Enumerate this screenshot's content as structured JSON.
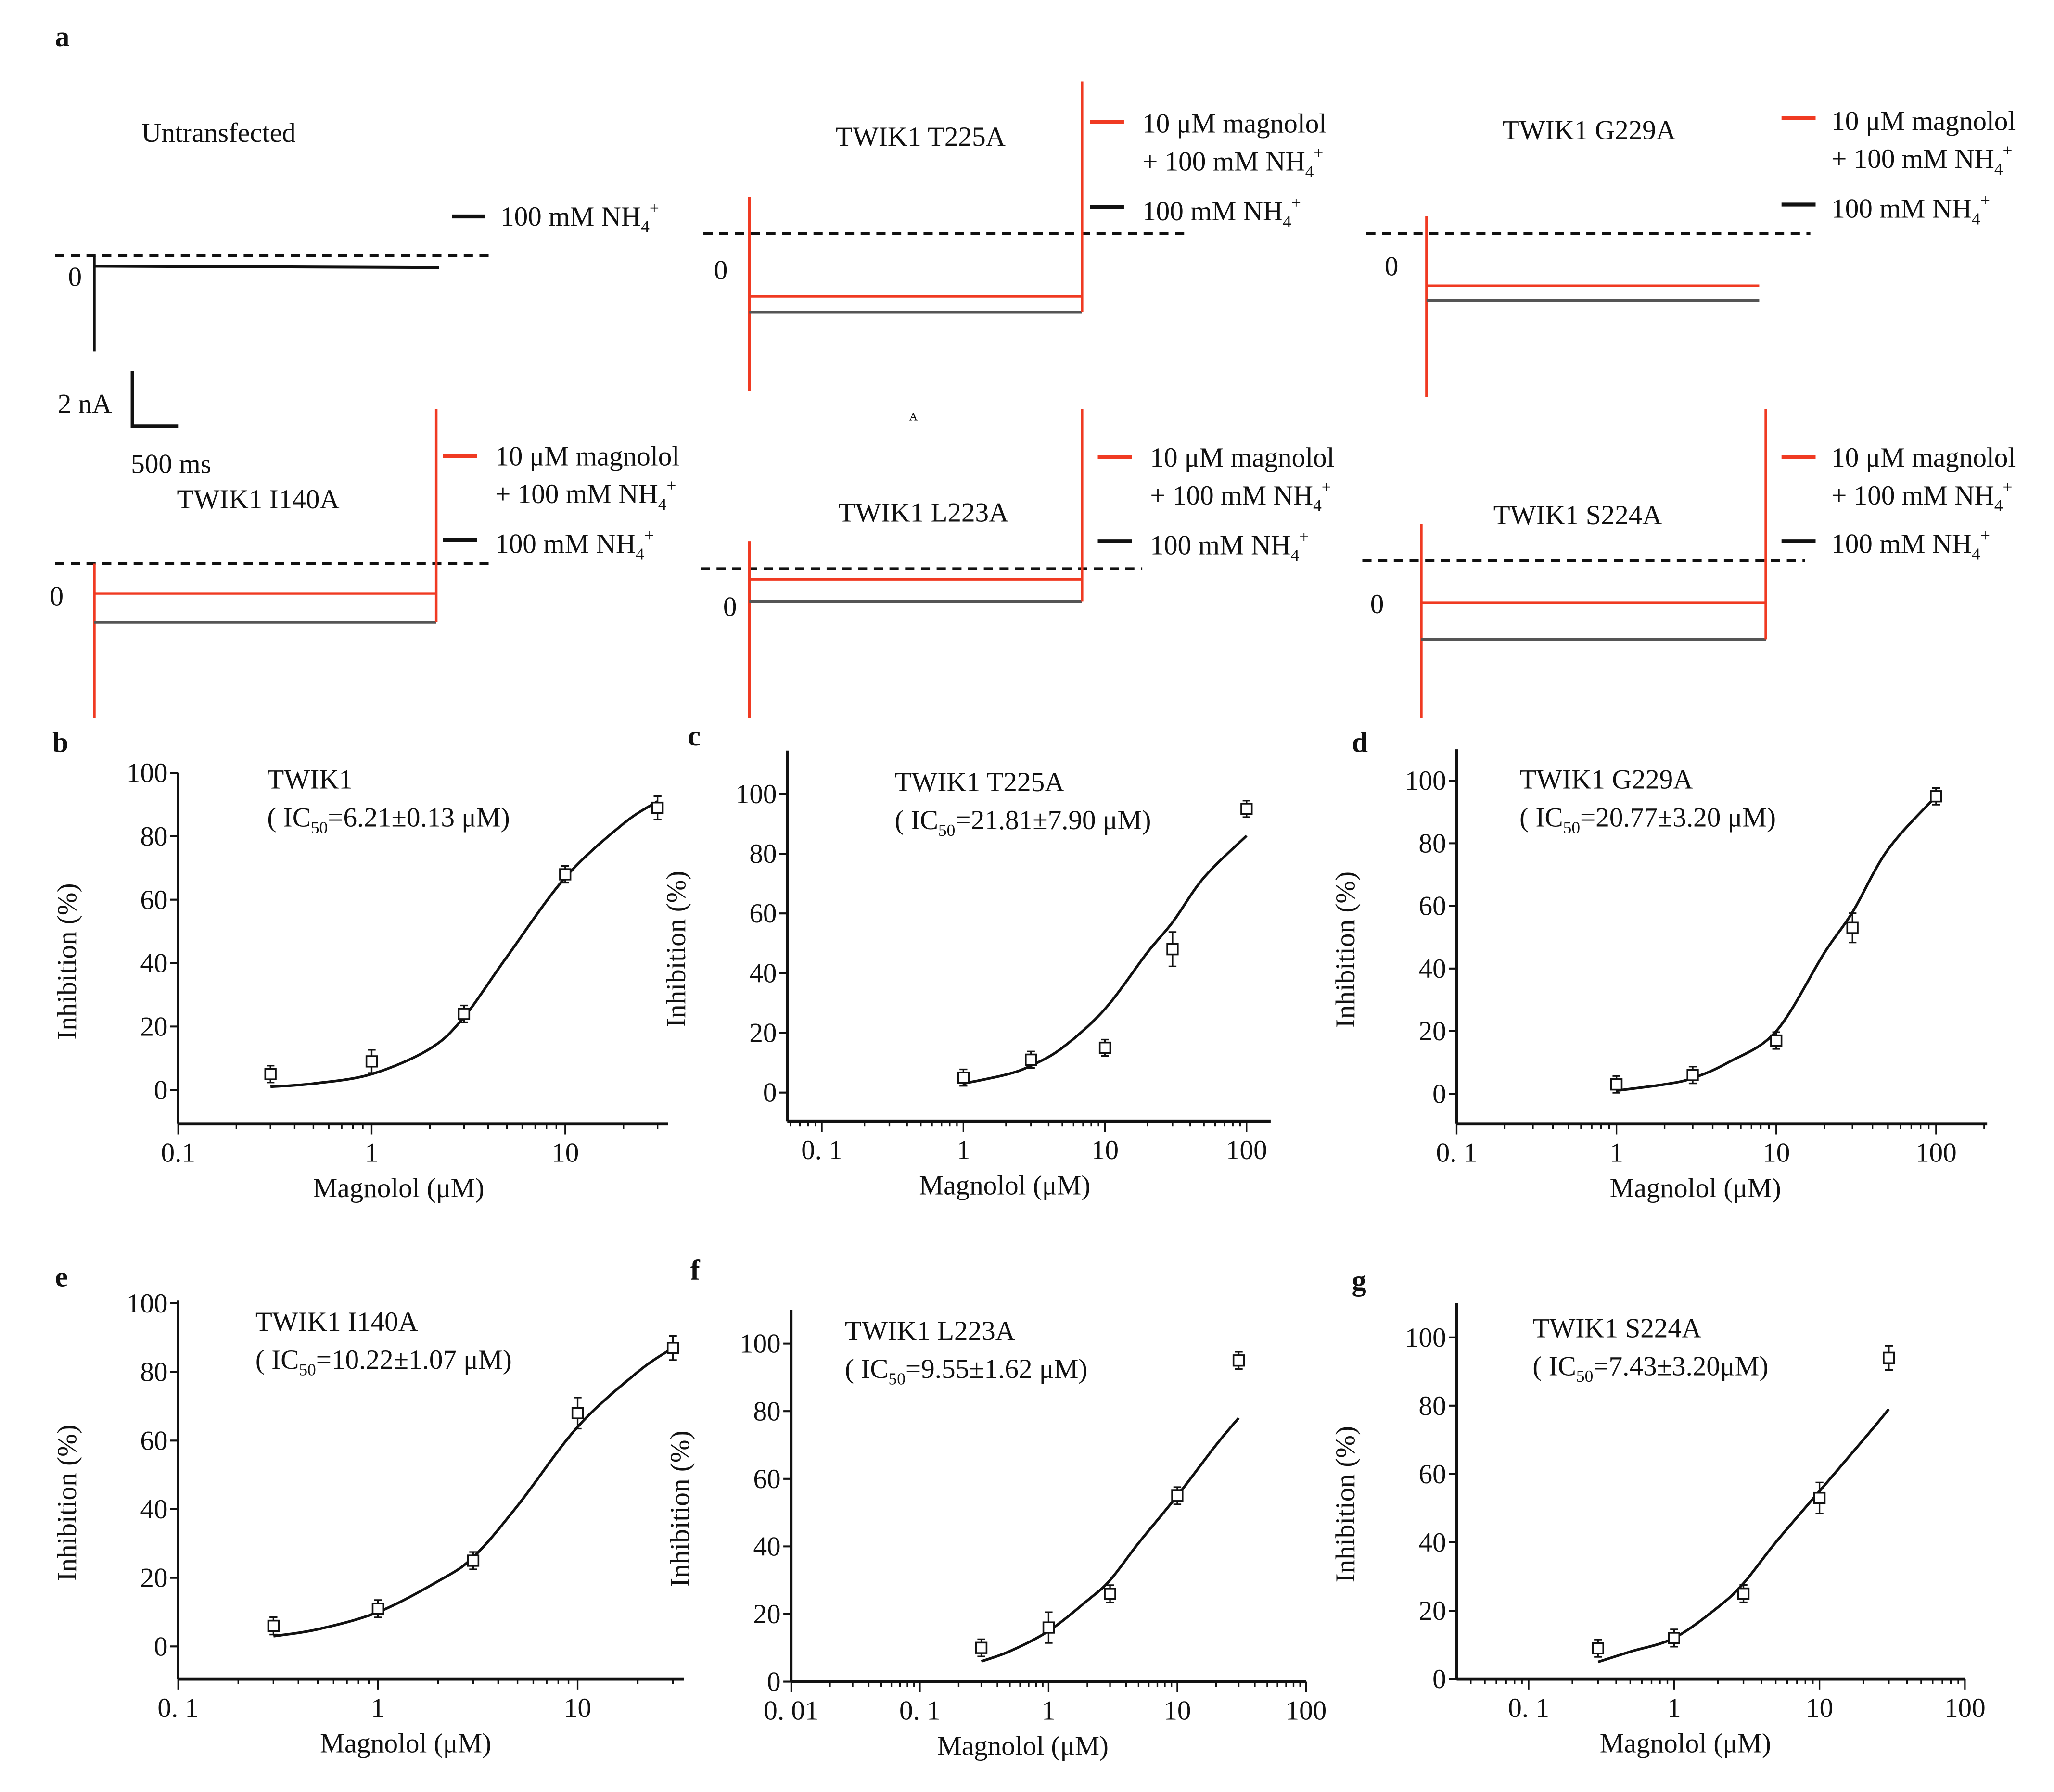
{
  "panel_letters": {
    "a": "a",
    "b": "b",
    "c": "c",
    "d": "d",
    "e": "e",
    "f": "f",
    "g": "g"
  },
  "traces": {
    "zero_label": "0",
    "stray_mark": "A",
    "scale_bar": {
      "current": "2 nA",
      "time": "500 ms"
    },
    "legend": {
      "magnolol_line1": "10 μM magnolol",
      "magnolol_line2_prefix": "+ 100 mM NH",
      "nh4_prefix": "100 mM NH",
      "sub": "4",
      "sup": "+"
    },
    "colors": {
      "magnolol": "#f03a22",
      "control": "#111111",
      "control_trace": "#555555"
    },
    "panels": [
      {
        "title": "Untransfected"
      },
      {
        "title": "TWIK1 T225A"
      },
      {
        "title": "TWIK1 G229A"
      },
      {
        "title": "TWIK1 I140A"
      },
      {
        "title": "TWIK1 L223A"
      },
      {
        "title": "TWIK1 S224A"
      }
    ]
  },
  "chart_data": [
    {
      "id": "b",
      "type": "scatter",
      "title": "TWIK1",
      "ic50_prefix": "( IC",
      "ic50_sub": "50",
      "ic50_value": "=6.21±0.13 μM)",
      "xlabel": "Magnolol (μM)",
      "ylabel": "Inhibition (%)",
      "xscale": "log",
      "xlim": [
        0.1,
        34
      ],
      "ylim": [
        -10.7,
        100
      ],
      "xticks": [
        {
          "v": 0.1,
          "t": "0.1"
        },
        {
          "v": 1,
          "t": "1"
        },
        {
          "v": 10,
          "t": "10"
        }
      ],
      "yticks": [
        0,
        20,
        40,
        60,
        80,
        100
      ],
      "x": [
        0.3,
        1,
        3,
        10,
        30
      ],
      "y": [
        5,
        9,
        24,
        68,
        89
      ],
      "err": [
        1,
        2,
        1,
        1,
        2
      ],
      "fit": {
        "x": [
          0.3,
          0.5,
          1,
          2,
          3,
          5,
          10,
          20,
          30
        ],
        "y": [
          1,
          2,
          5,
          13,
          23,
          42,
          67,
          84,
          91
        ]
      }
    },
    {
      "id": "c",
      "type": "scatter",
      "title": "TWIK1 T225A",
      "ic50_prefix": "( IC",
      "ic50_sub": "50",
      "ic50_value": "=21.81±7.90 μM)",
      "xlabel": "Magnolol (μM)",
      "ylabel": "Inhibition (%)",
      "xscale": "log",
      "xlim": [
        0.057,
        148
      ],
      "ylim": [
        -9.6,
        114.5
      ],
      "xticks": [
        {
          "v": 0.1,
          "t": "0. 1"
        },
        {
          "v": 1,
          "t": "1"
        },
        {
          "v": 10,
          "t": "10"
        },
        {
          "v": 100,
          "t": "100"
        }
      ],
      "yticks": [
        0,
        20,
        40,
        60,
        80,
        100
      ],
      "x": [
        1,
        3,
        10,
        30,
        100
      ],
      "y": [
        5,
        11,
        15,
        48,
        95
      ],
      "err": [
        1,
        1,
        1,
        4,
        1
      ],
      "fit": {
        "x": [
          1,
          2,
          3,
          5,
          10,
          20,
          30,
          50,
          100
        ],
        "y": [
          3,
          6,
          9,
          15,
          28,
          47,
          57,
          72,
          86
        ]
      }
    },
    {
      "id": "d",
      "type": "scatter",
      "title": "TWIK1 G229A",
      "ic50_prefix": "( IC",
      "ic50_sub": "50",
      "ic50_value": "=20.77±3.20 μM)",
      "xlabel": "Magnolol (μM)",
      "ylabel": "Inhibition (%)",
      "xscale": "log",
      "xlim": [
        0.1,
        209
      ],
      "ylim": [
        -9.6,
        110
      ],
      "xticks": [
        {
          "v": 0.1,
          "t": "0. 1"
        },
        {
          "v": 1,
          "t": "1"
        },
        {
          "v": 10,
          "t": "10"
        },
        {
          "v": 100,
          "t": "100"
        }
      ],
      "yticks": [
        0,
        20,
        40,
        60,
        80,
        100
      ],
      "x": [
        1,
        3,
        10,
        30,
        100
      ],
      "y": [
        3,
        6,
        17,
        53,
        95
      ],
      "err": [
        1,
        1,
        1,
        3,
        1
      ],
      "fit": {
        "x": [
          1,
          2,
          3,
          5,
          10,
          20,
          30,
          50,
          100
        ],
        "y": [
          1,
          3,
          5,
          10,
          20,
          45,
          58,
          78,
          95
        ]
      }
    },
    {
      "id": "e",
      "type": "scatter",
      "title": "TWIK1 I140A",
      "ic50_prefix": "( IC",
      "ic50_sub": "50",
      "ic50_value": "=10.22±1.07 μM)",
      "xlabel": "Magnolol (μM)",
      "ylabel": "Inhibition (%)",
      "xscale": "log",
      "xlim": [
        0.1,
        34
      ],
      "ylim": [
        -9.5,
        100.8
      ],
      "xticks": [
        {
          "v": 0.1,
          "t": "0. 1"
        },
        {
          "v": 1,
          "t": "1"
        },
        {
          "v": 10,
          "t": "10"
        }
      ],
      "yticks": [
        0,
        20,
        40,
        60,
        80,
        100
      ],
      "x": [
        0.3,
        1,
        3,
        10,
        30
      ],
      "y": [
        6,
        11,
        25,
        68,
        87
      ],
      "err": [
        1,
        1,
        1,
        3,
        2
      ],
      "fit": {
        "x": [
          0.3,
          0.5,
          1,
          2,
          3,
          5,
          10,
          20,
          30
        ],
        "y": [
          3,
          5,
          10,
          19,
          26,
          41,
          64,
          80,
          87
        ]
      }
    },
    {
      "id": "f",
      "type": "scatter",
      "title": "TWIK1 L223A",
      "ic50_prefix": "( IC",
      "ic50_sub": "50",
      "ic50_value": "=9.55±1.62 μM)",
      "xlabel": "Magnolol (μM)",
      "ylabel": "Inhibition (%)",
      "xscale": "log",
      "xlim": [
        0.01,
        100
      ],
      "ylim": [
        0,
        110
      ],
      "xticks": [
        {
          "v": 0.01,
          "t": "0. 01"
        },
        {
          "v": 0.1,
          "t": "0. 1"
        },
        {
          "v": 1,
          "t": "1"
        },
        {
          "v": 10,
          "t": "10"
        },
        {
          "v": 100,
          "t": "100"
        }
      ],
      "yticks": [
        0,
        20,
        40,
        60,
        80,
        100
      ],
      "x": [
        0.3,
        1,
        3,
        10,
        30
      ],
      "y": [
        10,
        16,
        26,
        55,
        95
      ],
      "err": [
        1,
        3,
        1,
        1,
        1
      ],
      "fit": {
        "x": [
          0.3,
          0.5,
          1,
          2,
          3,
          5,
          10,
          20,
          30
        ],
        "y": [
          6,
          9,
          15,
          24,
          30,
          41,
          55,
          70,
          78
        ]
      }
    },
    {
      "id": "g",
      "type": "scatter",
      "title": "TWIK1 S224A",
      "ic50_prefix": "( IC",
      "ic50_sub": "50",
      "ic50_value": "=7.43±3.20μM)",
      "xlabel": "Magnolol (μM)",
      "ylabel": "Inhibition (%)",
      "xscale": "log",
      "xlim": [
        0.032,
        100
      ],
      "ylim": [
        0,
        110
      ],
      "xticks": [
        {
          "v": 0.1,
          "t": "0. 1"
        },
        {
          "v": 1,
          "t": "1"
        },
        {
          "v": 10,
          "t": "10"
        },
        {
          "v": 100,
          "t": "100"
        }
      ],
      "yticks": [
        0,
        20,
        40,
        60,
        80,
        100
      ],
      "x": [
        0.3,
        1,
        3,
        10,
        30
      ],
      "y": [
        9,
        12,
        25,
        53,
        94
      ],
      "err": [
        1,
        1,
        1,
        3,
        2
      ],
      "fit": {
        "x": [
          0.3,
          0.5,
          1,
          2,
          3,
          5,
          10,
          20,
          30
        ],
        "y": [
          5,
          8,
          12,
          21,
          28,
          40,
          55,
          70,
          79
        ]
      }
    }
  ]
}
